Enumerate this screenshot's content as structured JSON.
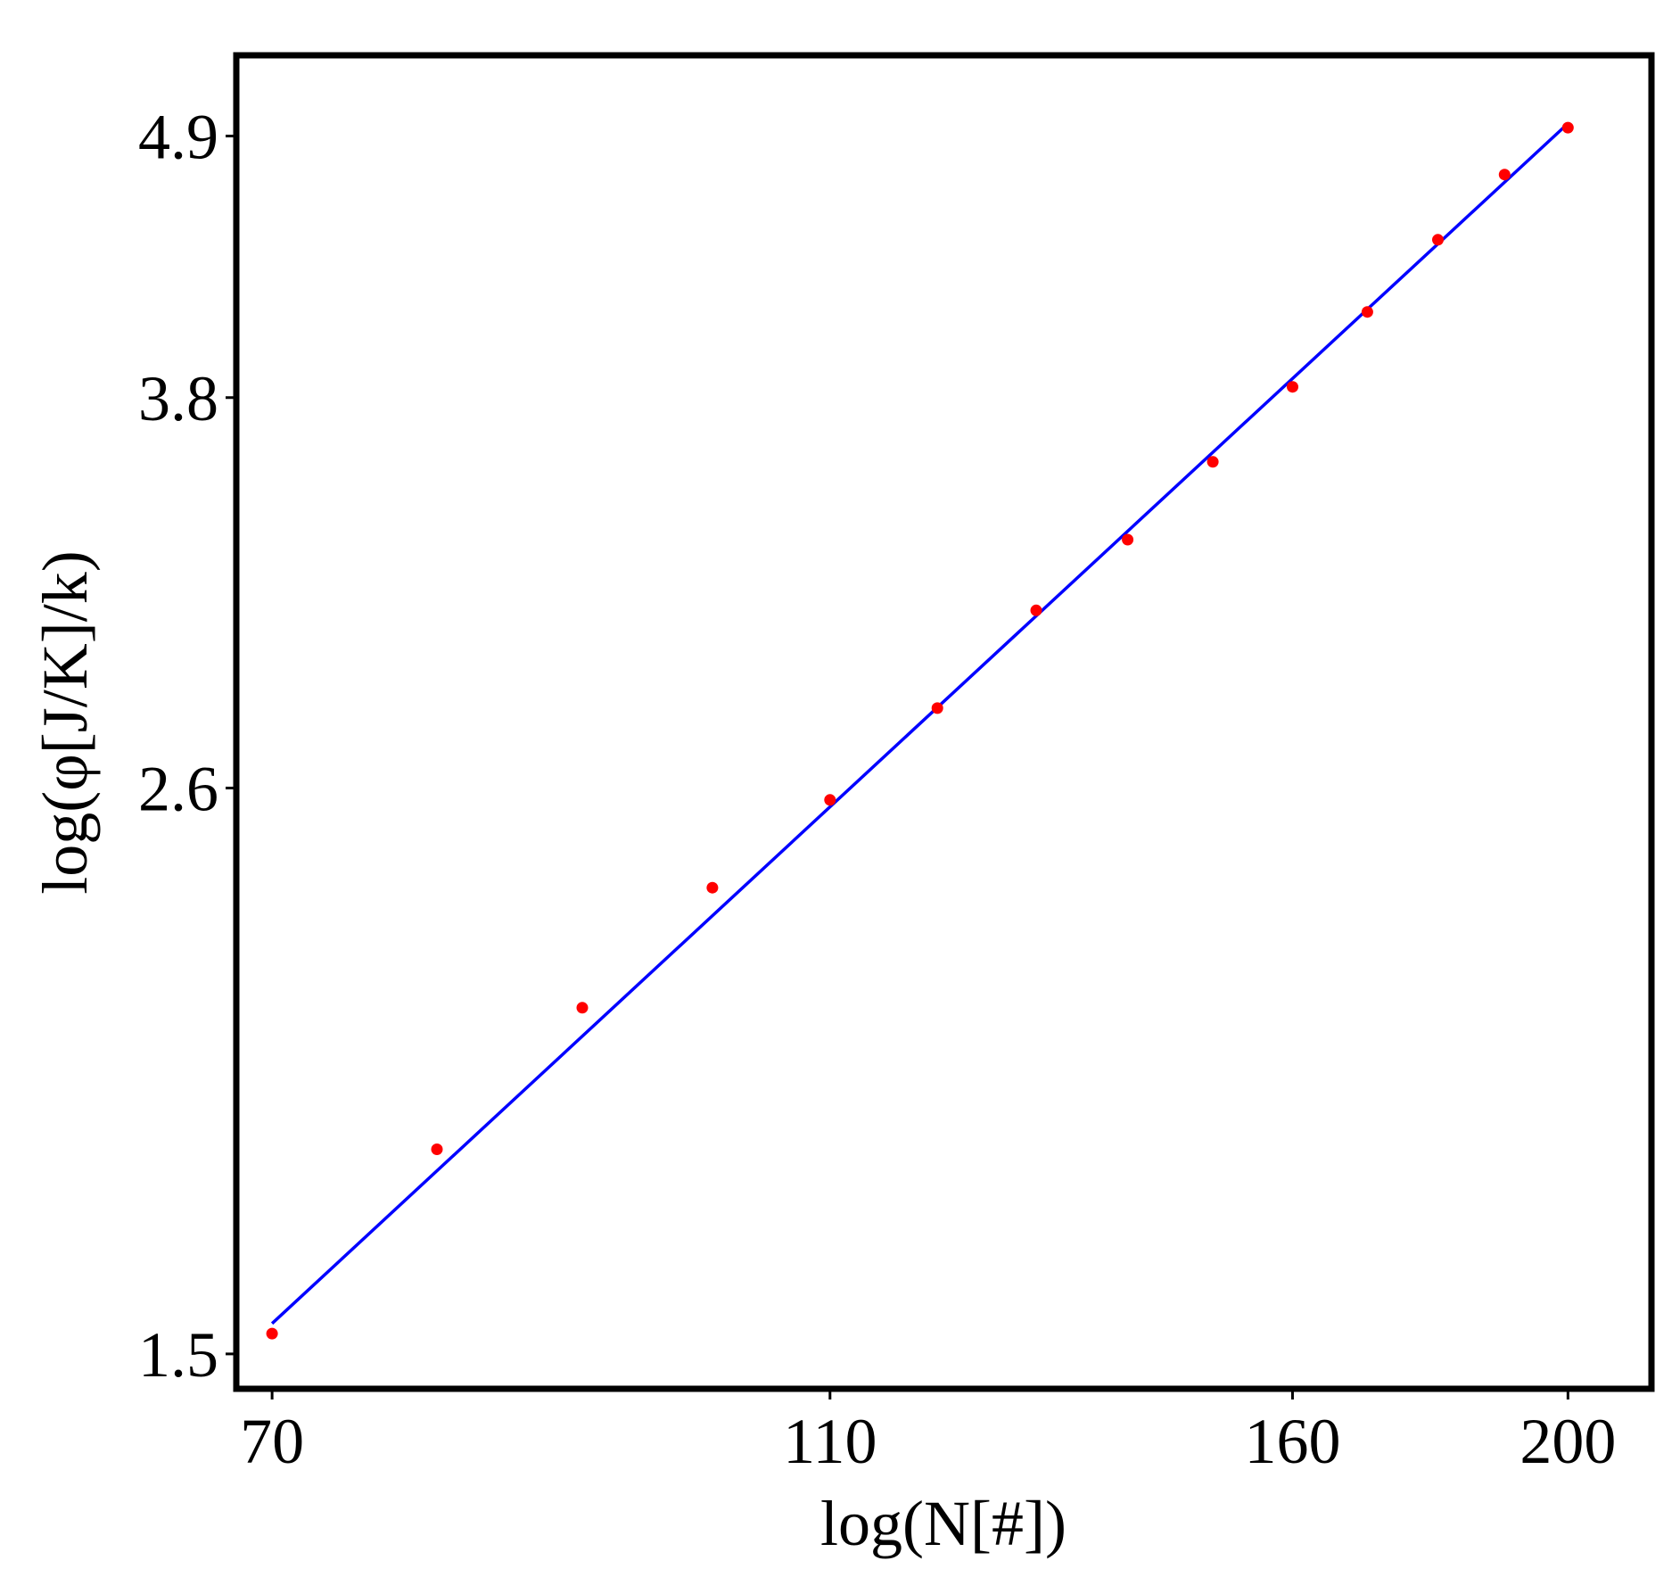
{
  "chart_data": {
    "type": "scatter",
    "title": "",
    "xlabel": "log(N[#])",
    "ylabel": "log(φ[J/K]/k)",
    "x_scale": "log",
    "y_scale": "log",
    "xlim": [
      68,
      214
    ],
    "ylim": [
      1.45,
      5.3
    ],
    "x_ticks": [
      70,
      110,
      160,
      200
    ],
    "x_tick_labels": [
      "70",
      "110",
      "160",
      "200"
    ],
    "y_ticks": [
      1.5,
      2.6,
      3.8,
      4.9
    ],
    "y_tick_labels": [
      "1.5",
      "2.6",
      "3.8",
      "4.9"
    ],
    "grid": false,
    "legend": "none",
    "series": [
      {
        "kind": "scatter",
        "color": "#ff0000",
        "points": [
          [
            70,
            1.53
          ],
          [
            80,
            1.83
          ],
          [
            90,
            2.1
          ],
          [
            100,
            2.36
          ],
          [
            110,
            2.57
          ],
          [
            120,
            2.81
          ],
          [
            130,
            3.09
          ],
          [
            140,
            3.31
          ],
          [
            150,
            3.57
          ],
          [
            160,
            3.84
          ],
          [
            170,
            4.13
          ],
          [
            180,
            4.43
          ],
          [
            190,
            4.72
          ],
          [
            200,
            4.94
          ]
        ]
      },
      {
        "kind": "line",
        "color": "#0000ff",
        "points": [
          [
            70,
            1.545
          ],
          [
            200,
            4.96
          ]
        ]
      }
    ]
  }
}
